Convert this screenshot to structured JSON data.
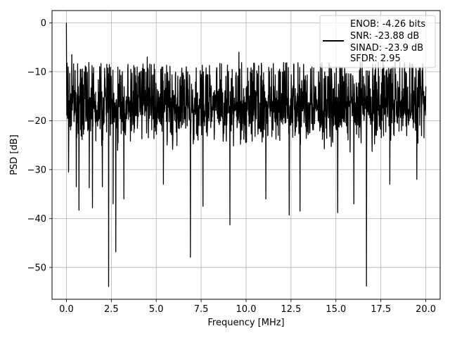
{
  "chart_data": {
    "type": "line",
    "title": "",
    "xlabel": "Frequency [MHz]",
    "ylabel": "PSD [dB]",
    "xlim": [
      -0.8,
      20.8
    ],
    "ylim": [
      -56.5,
      2.5
    ],
    "xticks": [
      0.0,
      2.5,
      5.0,
      7.5,
      10.0,
      12.5,
      15.0,
      17.5,
      20.0
    ],
    "xtick_labels": [
      "0.0",
      "2.5",
      "5.0",
      "7.5",
      "10.0",
      "12.5",
      "15.0",
      "17.5",
      "20.0"
    ],
    "yticks": [
      0,
      -10,
      -20,
      -30,
      -40,
      -50
    ],
    "ytick_labels": [
      "0",
      "−10",
      "−20",
      "−30",
      "−40",
      "−50"
    ],
    "grid": true,
    "legend_location": "top-right",
    "legend_entries": [
      "ENOB: -4.26 bits",
      "SNR: -23.88 dB",
      "SINAD: -23.9 dB",
      "SFDR: 2.95"
    ],
    "series": [
      {
        "color": "#000000",
        "x_range": [
          0,
          20
        ],
        "noise_floor_db": -18,
        "typical_range_db": [
          -27,
          -8
        ],
        "peaks": [
          {
            "x": 0.0,
            "y": 0.0
          },
          {
            "x": 0.05,
            "y": -16.5
          },
          {
            "x": 0.12,
            "y": -30.5
          },
          {
            "x": 0.3,
            "y": -6.5
          },
          {
            "x": 0.55,
            "y": -33.5
          },
          {
            "x": 0.7,
            "y": -38.3
          },
          {
            "x": 1.27,
            "y": -33.7
          },
          {
            "x": 1.45,
            "y": -37.8
          },
          {
            "x": 2.0,
            "y": -33.5
          },
          {
            "x": 2.35,
            "y": -53.9
          },
          {
            "x": 2.6,
            "y": -37.0
          },
          {
            "x": 2.75,
            "y": -46.8
          },
          {
            "x": 3.2,
            "y": -36.0
          },
          {
            "x": 4.5,
            "y": -7.0
          },
          {
            "x": 5.4,
            "y": -33.0
          },
          {
            "x": 6.9,
            "y": -47.9
          },
          {
            "x": 7.6,
            "y": -37.5
          },
          {
            "x": 9.1,
            "y": -41.3
          },
          {
            "x": 9.6,
            "y": -6.0
          },
          {
            "x": 11.1,
            "y": -36.0
          },
          {
            "x": 12.4,
            "y": -39.3
          },
          {
            "x": 13.0,
            "y": -38.5
          },
          {
            "x": 15.1,
            "y": -38.8
          },
          {
            "x": 16.0,
            "y": -37.0
          },
          {
            "x": 16.7,
            "y": -53.8
          },
          {
            "x": 18.0,
            "y": -33.0
          },
          {
            "x": 19.5,
            "y": -32.0
          },
          {
            "x": 20.0,
            "y": -13.0
          }
        ]
      }
    ]
  }
}
